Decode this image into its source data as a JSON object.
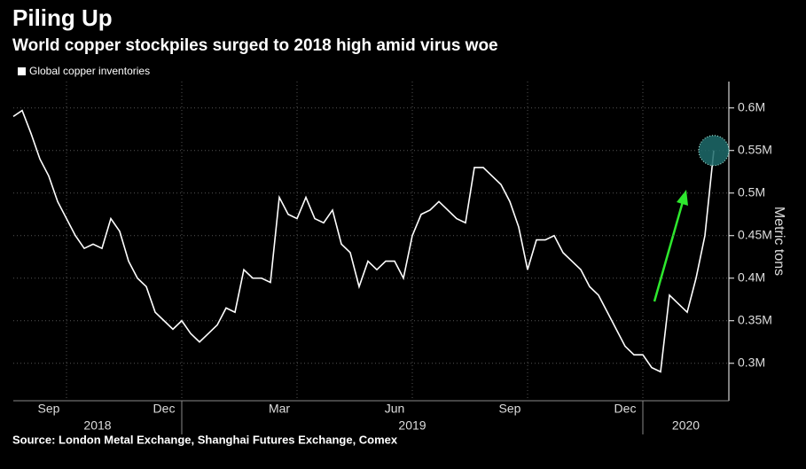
{
  "chart_data": {
    "type": "line",
    "title": "Piling Up",
    "subtitle": "World copper stockpiles surged to 2018 high amid virus woe",
    "y_axis_label": "Metric tons",
    "source": "Source: London Metal Exchange, Shanghai Futures Exchange, Comex",
    "categories": [
      null,
      null,
      null,
      null,
      "Sep",
      null,
      null,
      null,
      null,
      null,
      null,
      null,
      null,
      null,
      null,
      null,
      null,
      "Dec",
      null,
      null,
      null,
      null,
      null,
      null,
      null,
      null,
      null,
      null,
      null,
      null,
      "Mar",
      null,
      null,
      null,
      null,
      null,
      null,
      null,
      null,
      null,
      null,
      null,
      null,
      "Jun",
      null,
      null,
      null,
      null,
      null,
      null,
      null,
      null,
      null,
      null,
      null,
      null,
      "Sep",
      null,
      null,
      null,
      null,
      null,
      null,
      null,
      null,
      null,
      null,
      null,
      null,
      "Dec",
      null,
      null,
      null,
      null,
      null,
      null,
      null,
      null,
      null,
      null
    ],
    "x_groups": [
      "2018",
      "2019",
      "2020"
    ],
    "series": [
      {
        "name": "Global copper inventories",
        "color": "#ffffff",
        "values": [
          590000,
          597000,
          570000,
          540000,
          520000,
          490000,
          470000,
          450000,
          435000,
          440000,
          435000,
          470000,
          455000,
          420000,
          400000,
          390000,
          360000,
          350000,
          340000,
          350000,
          335000,
          325000,
          335000,
          345000,
          365000,
          360000,
          410000,
          400000,
          400000,
          395000,
          495000,
          475000,
          470000,
          495000,
          470000,
          465000,
          480000,
          440000,
          430000,
          390000,
          420000,
          410000,
          420000,
          420000,
          400000,
          450000,
          475000,
          480000,
          490000,
          480000,
          470000,
          465000,
          530000,
          530000,
          520000,
          510000,
          490000,
          460000,
          410000,
          445000,
          445000,
          450000,
          430000,
          420000,
          410000,
          390000,
          380000,
          360000,
          340000,
          320000,
          310000,
          310000,
          295000,
          290000,
          380000,
          370000,
          360000,
          400000,
          450000,
          550000
        ]
      }
    ],
    "ylim": [
      256000,
      631000
    ],
    "yticks": [
      {
        "value": 300000,
        "label": "0.3M"
      },
      {
        "value": 350000,
        "label": "0.35M"
      },
      {
        "value": 400000,
        "label": "0.4M"
      },
      {
        "value": 450000,
        "label": "0.45M"
      },
      {
        "value": 500000,
        "label": "0.5M"
      },
      {
        "value": 550000,
        "label": "0.55M"
      },
      {
        "value": 600000,
        "label": "0.6M"
      }
    ],
    "grid": true
  }
}
